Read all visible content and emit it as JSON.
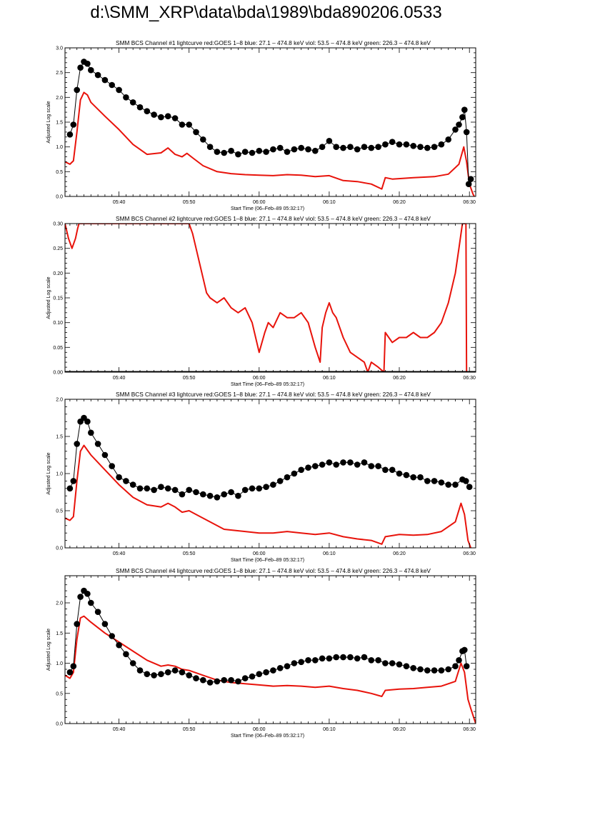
{
  "page": {
    "title": "d:\\SMM_XRP\\data\\bda\\1989\\bda890206.0533"
  },
  "colors": {
    "goes": "#e8130b",
    "bcs": "#000000"
  },
  "chart_data": [
    {
      "type": "line",
      "title": "SMM BCS Channel #1 lightcurve  red:GOES 1–8  blue: 27.1 – 474.8 keV  viol: 53.5 – 474.8 keV  green: 226.3 – 474.8 keV",
      "xlabel": "Start Time (06–Feb–89 05:32:17)",
      "ylabel": "Adjusted Log scale",
      "xlim": [
        32.3,
        90.9
      ],
      "ylim": [
        0,
        3.0
      ],
      "xticks": [
        {
          "v": 40,
          "label": "05:40"
        },
        {
          "v": 50,
          "label": "05:50"
        },
        {
          "v": 60,
          "label": "06:00"
        },
        {
          "v": 70,
          "label": "06:10"
        },
        {
          "v": 80,
          "label": "06:20"
        },
        {
          "v": 90,
          "label": "06:30"
        }
      ],
      "yticks": [
        {
          "v": 0.0,
          "label": "0.0"
        },
        {
          "v": 0.5,
          "label": "0.5"
        },
        {
          "v": 1.0,
          "label": "1.0"
        },
        {
          "v": 1.5,
          "label": "1.5"
        },
        {
          "v": 2.0,
          "label": "2.0"
        },
        {
          "v": 2.5,
          "label": "2.5"
        },
        {
          "v": 3.0,
          "label": "3.0"
        }
      ],
      "series": [
        {
          "color": "#e8130b",
          "style": "line",
          "x": [
            32.3,
            33.0,
            33.5,
            34.0,
            34.5,
            35.0,
            35.5,
            36.0,
            38.0,
            40.0,
            42.0,
            44.0,
            46.0,
            47.0,
            48.0,
            49.0,
            49.7,
            50.5,
            52.0,
            54.0,
            56.0,
            58.0,
            60.0,
            62.0,
            64.0,
            66.0,
            68.0,
            70.0,
            72.0,
            74.0,
            76.0,
            77.5,
            78.0,
            79.0,
            82.0,
            85.0,
            87.0,
            88.5,
            89.2,
            89.6,
            90.0,
            90.5,
            90.7
          ],
          "y": [
            0.7,
            0.65,
            0.72,
            1.3,
            1.95,
            2.1,
            2.05,
            1.9,
            1.62,
            1.35,
            1.05,
            0.85,
            0.88,
            0.98,
            0.85,
            0.8,
            0.87,
            0.78,
            0.62,
            0.5,
            0.46,
            0.44,
            0.43,
            0.42,
            0.44,
            0.43,
            0.4,
            0.42,
            0.32,
            0.3,
            0.25,
            0.15,
            0.38,
            0.35,
            0.38,
            0.4,
            0.45,
            0.65,
            1.0,
            0.7,
            0.25,
            0.05,
            0.0
          ]
        },
        {
          "color": "#000000",
          "style": "markers",
          "x": [
            33.0,
            33.5,
            34.0,
            34.5,
            35.0,
            35.5,
            36.0,
            37.0,
            38.0,
            39.0,
            40.0,
            41.0,
            42.0,
            43.0,
            44.0,
            45.0,
            46.0,
            47.0,
            48.0,
            49.0,
            50.0,
            51.0,
            52.0,
            53.0,
            54.0,
            55.0,
            56.0,
            57.0,
            58.0,
            59.0,
            60.0,
            61.0,
            62.0,
            63.0,
            64.0,
            65.0,
            66.0,
            67.0,
            68.0,
            69.0,
            70.0,
            71.0,
            72.0,
            73.0,
            74.0,
            75.0,
            76.0,
            77.0,
            78.0,
            79.0,
            80.0,
            81.0,
            82.0,
            83.0,
            84.0,
            85.0,
            86.0,
            87.0,
            88.0,
            88.5,
            89.0,
            89.3,
            89.6,
            89.9,
            90.2
          ],
          "y": [
            1.25,
            1.45,
            2.15,
            2.6,
            2.72,
            2.68,
            2.55,
            2.45,
            2.35,
            2.25,
            2.15,
            2.0,
            1.9,
            1.8,
            1.72,
            1.65,
            1.6,
            1.62,
            1.58,
            1.45,
            1.45,
            1.3,
            1.15,
            1.0,
            0.9,
            0.88,
            0.92,
            0.85,
            0.9,
            0.88,
            0.92,
            0.9,
            0.95,
            0.98,
            0.9,
            0.95,
            0.98,
            0.95,
            0.92,
            1.0,
            1.12,
            1.0,
            0.98,
            1.0,
            0.95,
            1.0,
            0.98,
            1.0,
            1.05,
            1.1,
            1.05,
            1.05,
            1.02,
            1.0,
            0.98,
            1.0,
            1.05,
            1.15,
            1.35,
            1.45,
            1.6,
            1.75,
            1.3,
            0.25,
            0.35
          ]
        }
      ]
    },
    {
      "type": "line",
      "title": "SMM BCS Channel #2 lightcurve  red:GOES 1–8  blue: 27.1 – 474.8 keV  viol: 53.5 – 474.8 keV  green: 226.3 – 474.8 keV",
      "xlabel": "Start Time (06–Feb–89 05:32:17)",
      "ylabel": "Adjusted Log scale",
      "xlim": [
        32.3,
        90.9
      ],
      "ylim": [
        0,
        0.3
      ],
      "xticks": [
        {
          "v": 40,
          "label": "05:40"
        },
        {
          "v": 50,
          "label": "05:50"
        },
        {
          "v": 60,
          "label": "06:00"
        },
        {
          "v": 70,
          "label": "06:10"
        },
        {
          "v": 80,
          "label": "06:20"
        },
        {
          "v": 90,
          "label": "06:30"
        }
      ],
      "yticks": [
        {
          "v": 0.0,
          "label": "0.00"
        },
        {
          "v": 0.05,
          "label": "0.05"
        },
        {
          "v": 0.1,
          "label": "0.10"
        },
        {
          "v": 0.15,
          "label": "0.15"
        },
        {
          "v": 0.2,
          "label": "0.20"
        },
        {
          "v": 0.25,
          "label": "0.25"
        },
        {
          "v": 0.3,
          "label": "0.30"
        }
      ],
      "series": [
        {
          "color": "#e8130b",
          "style": "line",
          "x": [
            32.3,
            32.8,
            33.3,
            33.8,
            34.1,
            34.3,
            50.0,
            50.5,
            51.0,
            51.5,
            52.0,
            52.5,
            53.0,
            54.0,
            55.0,
            56.0,
            57.0,
            58.0,
            59.0,
            59.5,
            60.0,
            60.8,
            61.3,
            62.0,
            63.0,
            64.0,
            65.0,
            66.0,
            67.0,
            68.0,
            68.7,
            69.0,
            69.5,
            70.0,
            70.5,
            71.0,
            72.0,
            73.0,
            74.0,
            75.0,
            75.5,
            76.0,
            77.0,
            77.8,
            78.0,
            79.0,
            80.0,
            81.0,
            82.0,
            83.0,
            84.0,
            85.0,
            86.0,
            87.0,
            88.0,
            88.5,
            89.0,
            89.2,
            89.5,
            89.6,
            89.8
          ],
          "y": [
            0.3,
            0.27,
            0.25,
            0.27,
            0.29,
            0.3,
            0.3,
            0.28,
            0.25,
            0.22,
            0.19,
            0.16,
            0.15,
            0.14,
            0.15,
            0.13,
            0.12,
            0.13,
            0.1,
            0.07,
            0.04,
            0.08,
            0.1,
            0.09,
            0.12,
            0.11,
            0.11,
            0.12,
            0.1,
            0.05,
            0.02,
            0.09,
            0.12,
            0.14,
            0.12,
            0.11,
            0.07,
            0.04,
            0.03,
            0.02,
            0.0,
            0.02,
            0.01,
            0.0,
            0.08,
            0.06,
            0.07,
            0.07,
            0.08,
            0.07,
            0.07,
            0.08,
            0.1,
            0.14,
            0.2,
            0.25,
            0.3,
            0.3,
            0.3,
            0.0,
            0.0
          ]
        },
        {
          "color": "#000000",
          "style": "line",
          "x": [
            32.3,
            90.9
          ],
          "y": [
            0.0,
            0.0
          ]
        }
      ]
    },
    {
      "type": "line",
      "title": "SMM BCS Channel #3 lightcurve  red:GOES 1–8  blue: 27.1 – 474.8 keV  viol: 53.5 – 474.8 keV  green: 226.3 – 474.8 keV",
      "xlabel": "Start Time (06–Feb–89 05:32:17)",
      "ylabel": "Adjusted Log scale",
      "xlim": [
        32.3,
        90.9
      ],
      "ylim": [
        0,
        2.0
      ],
      "xticks": [
        {
          "v": 40,
          "label": "05:40"
        },
        {
          "v": 50,
          "label": "05:50"
        },
        {
          "v": 60,
          "label": "06:00"
        },
        {
          "v": 70,
          "label": "06:10"
        },
        {
          "v": 80,
          "label": "06:20"
        },
        {
          "v": 90,
          "label": "06:30"
        }
      ],
      "yticks": [
        {
          "v": 0.0,
          "label": "0.0"
        },
        {
          "v": 0.5,
          "label": "0.5"
        },
        {
          "v": 1.0,
          "label": "1.0"
        },
        {
          "v": 1.5,
          "label": "1.5"
        },
        {
          "v": 2.0,
          "label": "2.0"
        }
      ],
      "series": [
        {
          "color": "#e8130b",
          "style": "line",
          "x": [
            32.3,
            33.0,
            33.5,
            34.0,
            34.5,
            35.0,
            36.0,
            38.0,
            40.0,
            42.0,
            44.0,
            46.0,
            47.0,
            48.0,
            49.0,
            50.0,
            51.0,
            53.0,
            55.0,
            58.0,
            60.0,
            62.0,
            64.0,
            66.0,
            68.0,
            70.0,
            72.0,
            74.0,
            76.0,
            77.5,
            78.0,
            80.0,
            82.0,
            84.0,
            86.0,
            88.0,
            88.8,
            89.3,
            89.8,
            90.2
          ],
          "y": [
            0.4,
            0.37,
            0.42,
            0.9,
            1.3,
            1.38,
            1.25,
            1.05,
            0.85,
            0.68,
            0.58,
            0.55,
            0.6,
            0.55,
            0.48,
            0.5,
            0.45,
            0.35,
            0.25,
            0.22,
            0.2,
            0.2,
            0.22,
            0.2,
            0.18,
            0.2,
            0.15,
            0.12,
            0.1,
            0.05,
            0.15,
            0.18,
            0.17,
            0.18,
            0.22,
            0.35,
            0.6,
            0.45,
            0.1,
            0.0
          ]
        },
        {
          "color": "#000000",
          "style": "markers",
          "x": [
            33.0,
            33.5,
            34.0,
            34.5,
            35.0,
            35.5,
            36.0,
            37.0,
            38.0,
            39.0,
            40.0,
            41.0,
            42.0,
            43.0,
            44.0,
            45.0,
            46.0,
            47.0,
            48.0,
            49.0,
            50.0,
            51.0,
            52.0,
            53.0,
            54.0,
            55.0,
            56.0,
            57.0,
            58.0,
            59.0,
            60.0,
            61.0,
            62.0,
            63.0,
            64.0,
            65.0,
            66.0,
            67.0,
            68.0,
            69.0,
            70.0,
            71.0,
            72.0,
            73.0,
            74.0,
            75.0,
            76.0,
            77.0,
            78.0,
            79.0,
            80.0,
            81.0,
            82.0,
            83.0,
            84.0,
            85.0,
            86.0,
            87.0,
            88.0,
            89.0,
            89.5,
            90.0
          ],
          "y": [
            0.8,
            0.9,
            1.4,
            1.7,
            1.75,
            1.7,
            1.55,
            1.4,
            1.25,
            1.1,
            0.95,
            0.9,
            0.85,
            0.8,
            0.8,
            0.78,
            0.82,
            0.8,
            0.78,
            0.72,
            0.78,
            0.75,
            0.72,
            0.7,
            0.68,
            0.72,
            0.75,
            0.7,
            0.78,
            0.8,
            0.8,
            0.82,
            0.85,
            0.9,
            0.95,
            1.0,
            1.05,
            1.08,
            1.1,
            1.12,
            1.15,
            1.12,
            1.15,
            1.15,
            1.12,
            1.15,
            1.1,
            1.1,
            1.05,
            1.05,
            1.0,
            0.98,
            0.95,
            0.95,
            0.9,
            0.9,
            0.88,
            0.85,
            0.85,
            0.92,
            0.9,
            0.82
          ]
        }
      ]
    },
    {
      "type": "line",
      "title": "SMM BCS Channel #4 lightcurve  red:GOES 1–8  blue: 27.1 – 474.8 keV  viol: 53.5 – 474.8 keV  green: 226.3 – 474.8 keV",
      "xlabel": "Start Time (06–Feb–89 05:32:17)",
      "ylabel": "Adjusted Log scale",
      "xlim": [
        32.3,
        90.9
      ],
      "ylim": [
        0,
        2.45
      ],
      "xticks": [
        {
          "v": 40,
          "label": "05:40"
        },
        {
          "v": 50,
          "label": "05:50"
        },
        {
          "v": 60,
          "label": "06:00"
        },
        {
          "v": 70,
          "label": "06:10"
        },
        {
          "v": 80,
          "label": "06:20"
        },
        {
          "v": 90,
          "label": "06:30"
        }
      ],
      "yticks": [
        {
          "v": 0.0,
          "label": "0.0"
        },
        {
          "v": 0.5,
          "label": "0.5"
        },
        {
          "v": 1.0,
          "label": "1.0"
        },
        {
          "v": 1.5,
          "label": "1.5"
        },
        {
          "v": 2.0,
          "label": "2.0"
        }
      ],
      "series": [
        {
          "color": "#e8130b",
          "style": "line",
          "x": [
            32.3,
            33.0,
            33.5,
            34.0,
            34.5,
            35.0,
            36.0,
            38.0,
            40.0,
            42.0,
            44.0,
            46.0,
            47.0,
            48.0,
            49.0,
            50.0,
            52.0,
            54.0,
            56.0,
            58.0,
            60.0,
            62.0,
            64.0,
            66.0,
            68.0,
            70.0,
            72.0,
            74.0,
            76.0,
            77.5,
            78.0,
            80.0,
            82.0,
            84.0,
            86.0,
            88.0,
            88.8,
            89.3,
            89.8,
            90.2,
            90.9
          ],
          "y": [
            0.8,
            0.75,
            0.85,
            1.4,
            1.75,
            1.78,
            1.68,
            1.5,
            1.35,
            1.2,
            1.05,
            0.95,
            0.97,
            0.95,
            0.9,
            0.88,
            0.8,
            0.72,
            0.68,
            0.66,
            0.64,
            0.62,
            0.63,
            0.62,
            0.6,
            0.62,
            0.58,
            0.55,
            0.5,
            0.45,
            0.55,
            0.57,
            0.58,
            0.6,
            0.62,
            0.7,
            1.0,
            0.85,
            0.4,
            0.25,
            0.0
          ]
        },
        {
          "color": "#000000",
          "style": "markers",
          "x": [
            33.0,
            33.5,
            34.0,
            34.5,
            35.0,
            35.5,
            36.0,
            37.0,
            38.0,
            39.0,
            40.0,
            41.0,
            42.0,
            43.0,
            44.0,
            45.0,
            46.0,
            47.0,
            48.0,
            49.0,
            50.0,
            51.0,
            52.0,
            53.0,
            54.0,
            55.0,
            56.0,
            57.0,
            58.0,
            59.0,
            60.0,
            61.0,
            62.0,
            63.0,
            64.0,
            65.0,
            66.0,
            67.0,
            68.0,
            69.0,
            70.0,
            71.0,
            72.0,
            73.0,
            74.0,
            75.0,
            76.0,
            77.0,
            78.0,
            79.0,
            80.0,
            81.0,
            82.0,
            83.0,
            84.0,
            85.0,
            86.0,
            87.0,
            88.0,
            88.5,
            89.0,
            89.3,
            89.6
          ],
          "y": [
            0.85,
            0.95,
            1.65,
            2.1,
            2.2,
            2.15,
            2.0,
            1.85,
            1.65,
            1.45,
            1.3,
            1.15,
            1.0,
            0.88,
            0.82,
            0.8,
            0.82,
            0.85,
            0.88,
            0.85,
            0.8,
            0.75,
            0.72,
            0.68,
            0.7,
            0.72,
            0.72,
            0.7,
            0.75,
            0.78,
            0.82,
            0.85,
            0.88,
            0.92,
            0.95,
            1.0,
            1.02,
            1.05,
            1.05,
            1.08,
            1.08,
            1.1,
            1.1,
            1.1,
            1.08,
            1.1,
            1.05,
            1.05,
            1.0,
            1.0,
            0.98,
            0.95,
            0.92,
            0.9,
            0.88,
            0.88,
            0.88,
            0.9,
            0.95,
            1.05,
            1.2,
            1.22,
            0.95
          ]
        }
      ]
    }
  ]
}
